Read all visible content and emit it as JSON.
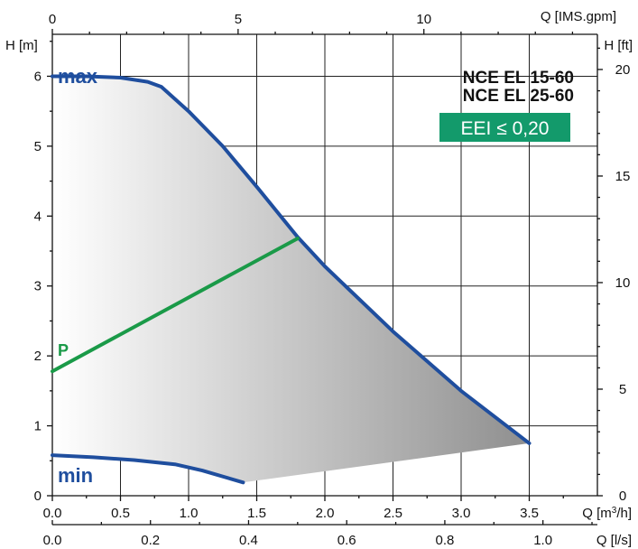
{
  "chart_data": {
    "type": "line",
    "title_lines": [
      "NCE EL 15-60",
      "NCE EL 25-60"
    ],
    "badge": {
      "text": "EEI ≤ 0,20",
      "color": "#139a6b"
    },
    "y_left": {
      "label": "H [m]",
      "ticks": [
        0,
        1,
        2,
        3,
        4,
        5,
        6
      ],
      "ylim": [
        0,
        6.6
      ]
    },
    "y_right": {
      "label": "H [ft]",
      "ticks": [
        0,
        5,
        10,
        15,
        20
      ],
      "ylim": [
        0,
        21.65
      ]
    },
    "x_bottom_primary": {
      "label": "Q [m³/h]",
      "label_base": "Q [m",
      "label_sup": "3",
      "label_tail": "/h]",
      "ticks": [
        "0.0",
        "0.5",
        "1.0",
        "1.5",
        "2.0",
        "2.5",
        "3.0",
        "3.5"
      ],
      "values": [
        0,
        0.5,
        1,
        1.5,
        2,
        2.5,
        3,
        3.5
      ],
      "xlim": [
        0,
        4.0
      ]
    },
    "x_bottom_secondary": {
      "label": "Q [l/s]",
      "ticks": [
        "0.0",
        "0.2",
        "0.4",
        "0.6",
        "0.8",
        "1.0"
      ],
      "values": [
        0,
        0.2,
        0.4,
        0.6,
        0.8,
        1.0
      ],
      "xlim": [
        0,
        1.111
      ]
    },
    "x_top": {
      "label": "Q [IMS.gpm]",
      "ticks": [
        "0",
        "5",
        "10"
      ],
      "values": [
        0,
        5,
        10
      ],
      "xlim": [
        0,
        14.67
      ]
    },
    "grid": true,
    "series": [
      {
        "name": "max",
        "color": "#1f4e9e",
        "x": [
          0,
          0.25,
          0.5,
          0.7,
          0.8,
          1.0,
          1.25,
          1.5,
          1.8,
          2.0,
          2.5,
          3.0,
          3.5
        ],
        "y": [
          6.0,
          6.0,
          5.98,
          5.92,
          5.85,
          5.5,
          5.0,
          4.42,
          3.7,
          3.28,
          2.35,
          1.5,
          0.75
        ]
      },
      {
        "name": "P",
        "color": "#1a9a48",
        "x": [
          0,
          1.8
        ],
        "y": [
          1.78,
          3.68
        ]
      },
      {
        "name": "min",
        "color": "#1f4e9e",
        "x": [
          0,
          0.3,
          0.6,
          0.9,
          1.1,
          1.4
        ],
        "y": [
          0.58,
          0.55,
          0.51,
          0.45,
          0.36,
          0.19
        ]
      }
    ],
    "shaded_region": "between max and min curves"
  }
}
